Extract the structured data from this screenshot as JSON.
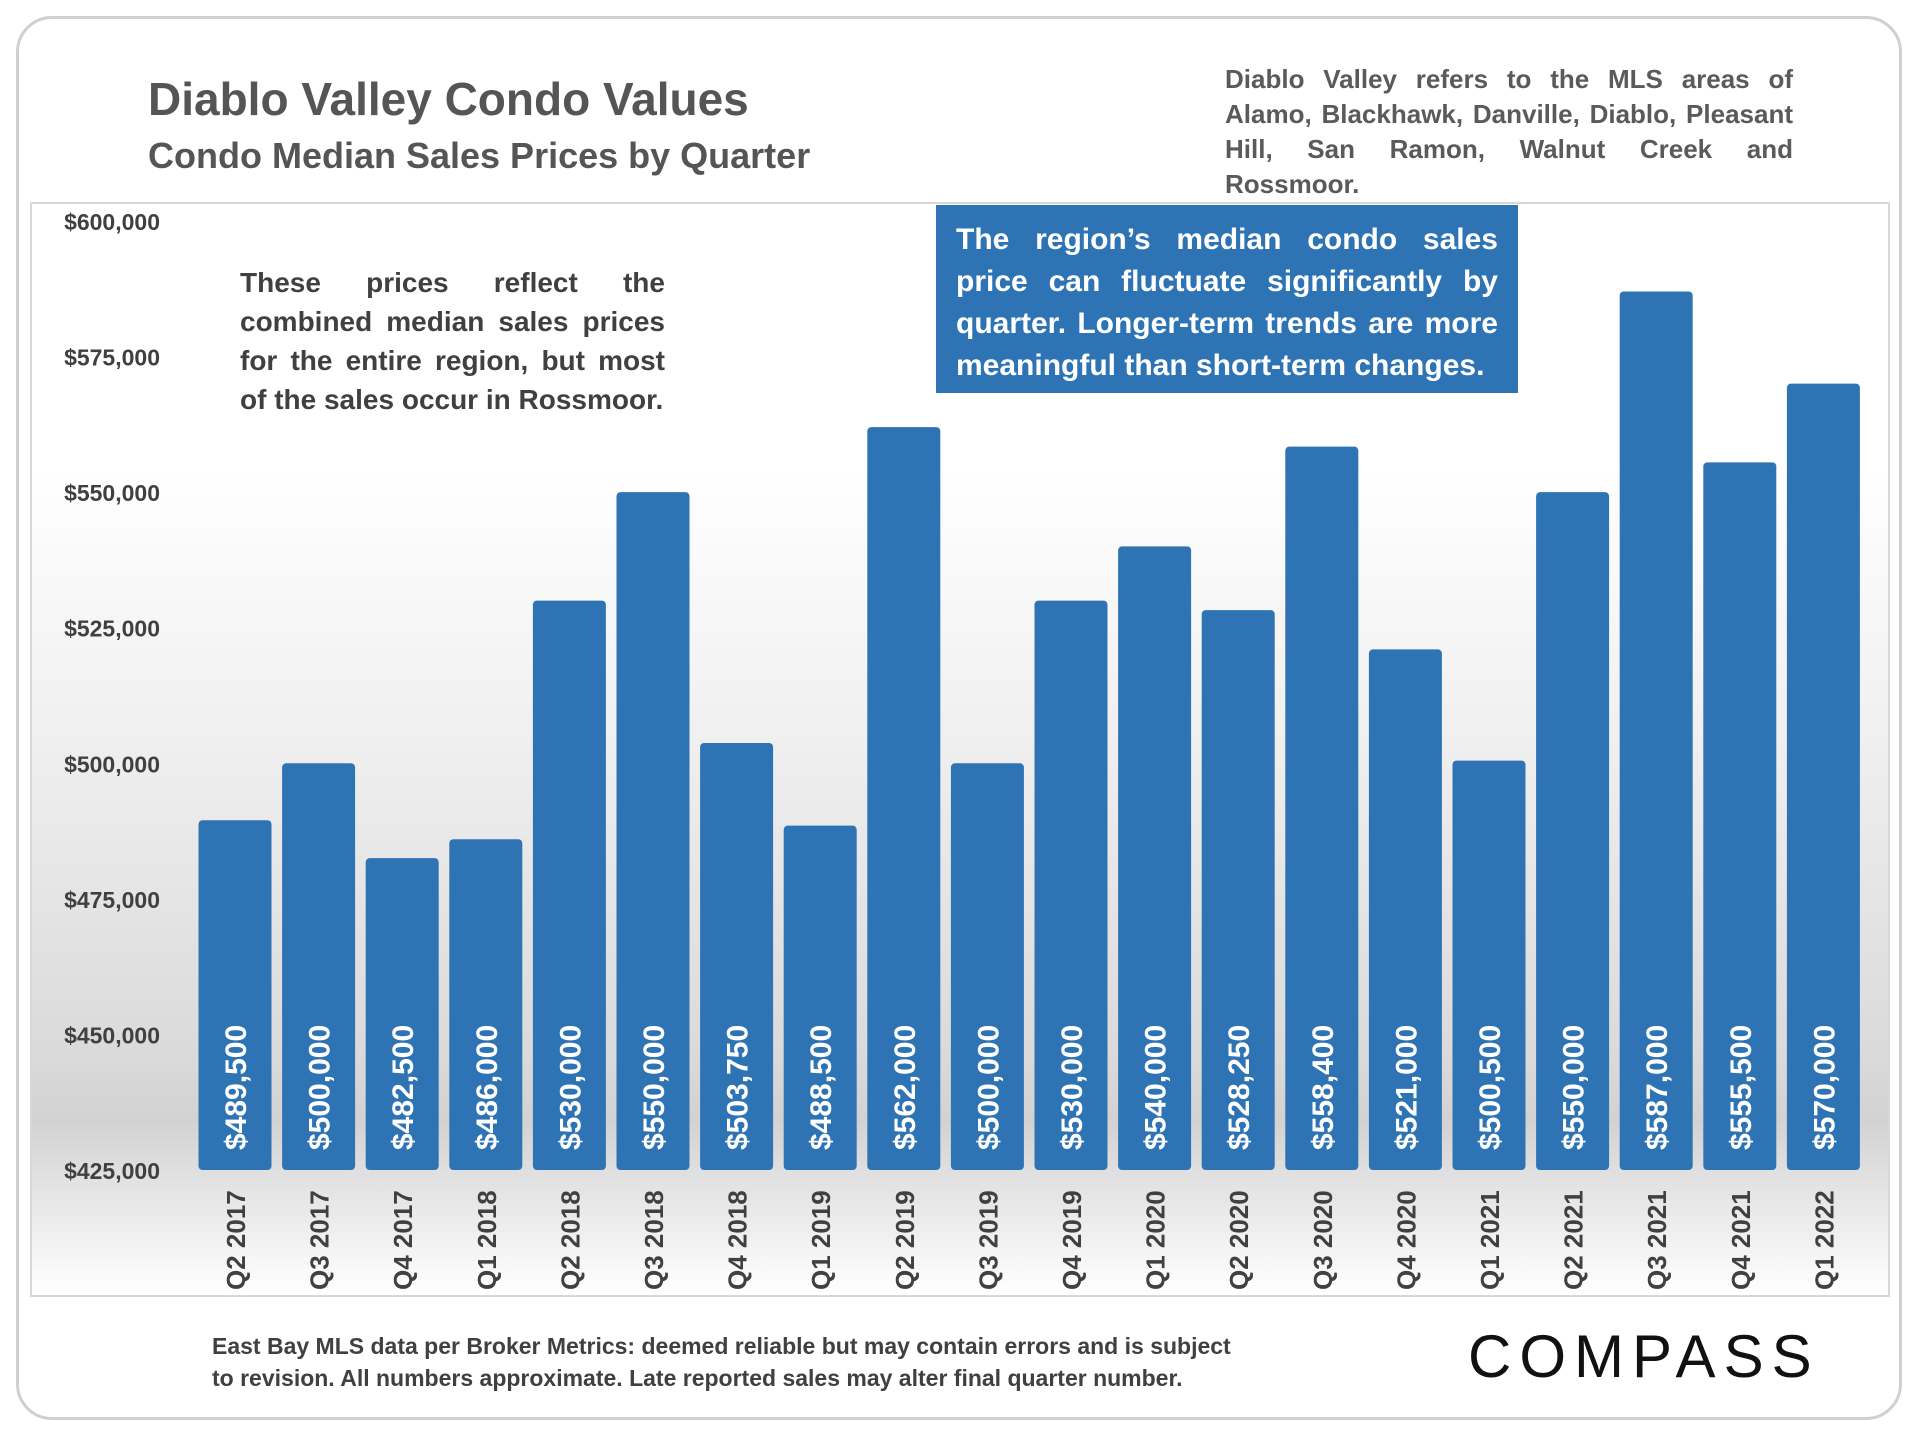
{
  "header": {
    "title": "Diablo Valley Condo Values",
    "subtitle": "Condo Median Sales Prices by Quarter",
    "area_note": "Diablo Valley refers to the MLS areas of Alamo, Blackhawk, Danville, Diablo, Pleasant Hill, San Ramon, Walnut Creek and Rossmoor."
  },
  "annotations": {
    "left_note": "These prices reflect the combined median sales prices for the entire region, but most of the sales occur in Rossmoor.",
    "blue_note": "The region’s median condo sales price can fluctuate significantly by quarter. Longer-term trends are more meaningful than short-term changes."
  },
  "footer": {
    "line1": "East Bay MLS data per Broker Metrics:  deemed reliable but may contain errors and is subject",
    "line2": "to revision. All numbers approximate. Late reported sales may alter final quarter number.",
    "logo": "COMPASS"
  },
  "colors": {
    "bar": "#2e74b5",
    "label": "#ffffff",
    "axis_text": "#404040"
  },
  "chart_data": {
    "type": "bar",
    "title": "Diablo Valley Condo Values",
    "subtitle": "Condo Median Sales Prices by Quarter",
    "xlabel": "",
    "ylabel": "",
    "ylim": [
      425000,
      600000
    ],
    "yticks": [
      425000,
      450000,
      475000,
      500000,
      525000,
      550000,
      575000,
      600000
    ],
    "ytick_labels": [
      "$425,000",
      "$450,000",
      "$475,000",
      "$500,000",
      "$525,000",
      "$550,000",
      "$575,000",
      "$600,000"
    ],
    "grid": false,
    "categories": [
      "Q2 2017",
      "Q3 2017",
      "Q4 2017",
      "Q1 2018",
      "Q2 2018",
      "Q3 2018",
      "Q4 2018",
      "Q1 2019",
      "Q2 2019",
      "Q3 2019",
      "Q4 2019",
      "Q1 2020",
      "Q2 2020",
      "Q3 2020",
      "Q4 2020",
      "Q1 2021",
      "Q2 2021",
      "Q3 2021",
      "Q4 2021",
      "Q1 2022"
    ],
    "values": [
      489500,
      500000,
      482500,
      486000,
      530000,
      550000,
      503750,
      488500,
      562000,
      500000,
      530000,
      540000,
      528250,
      558400,
      521000,
      500500,
      550000,
      587000,
      555500,
      570000
    ],
    "data_labels": [
      "$489,500",
      "$500,000",
      "$482,500",
      "$486,000",
      "$530,000",
      "$550,000",
      "$503,750",
      "$488,500",
      "$562,000",
      "$500,000",
      "$530,000",
      "$540,000",
      "$528,250",
      "$558,400",
      "$521,000",
      "$500,500",
      "$550,000",
      "$587,000",
      "$555,500",
      "$570,000"
    ]
  }
}
